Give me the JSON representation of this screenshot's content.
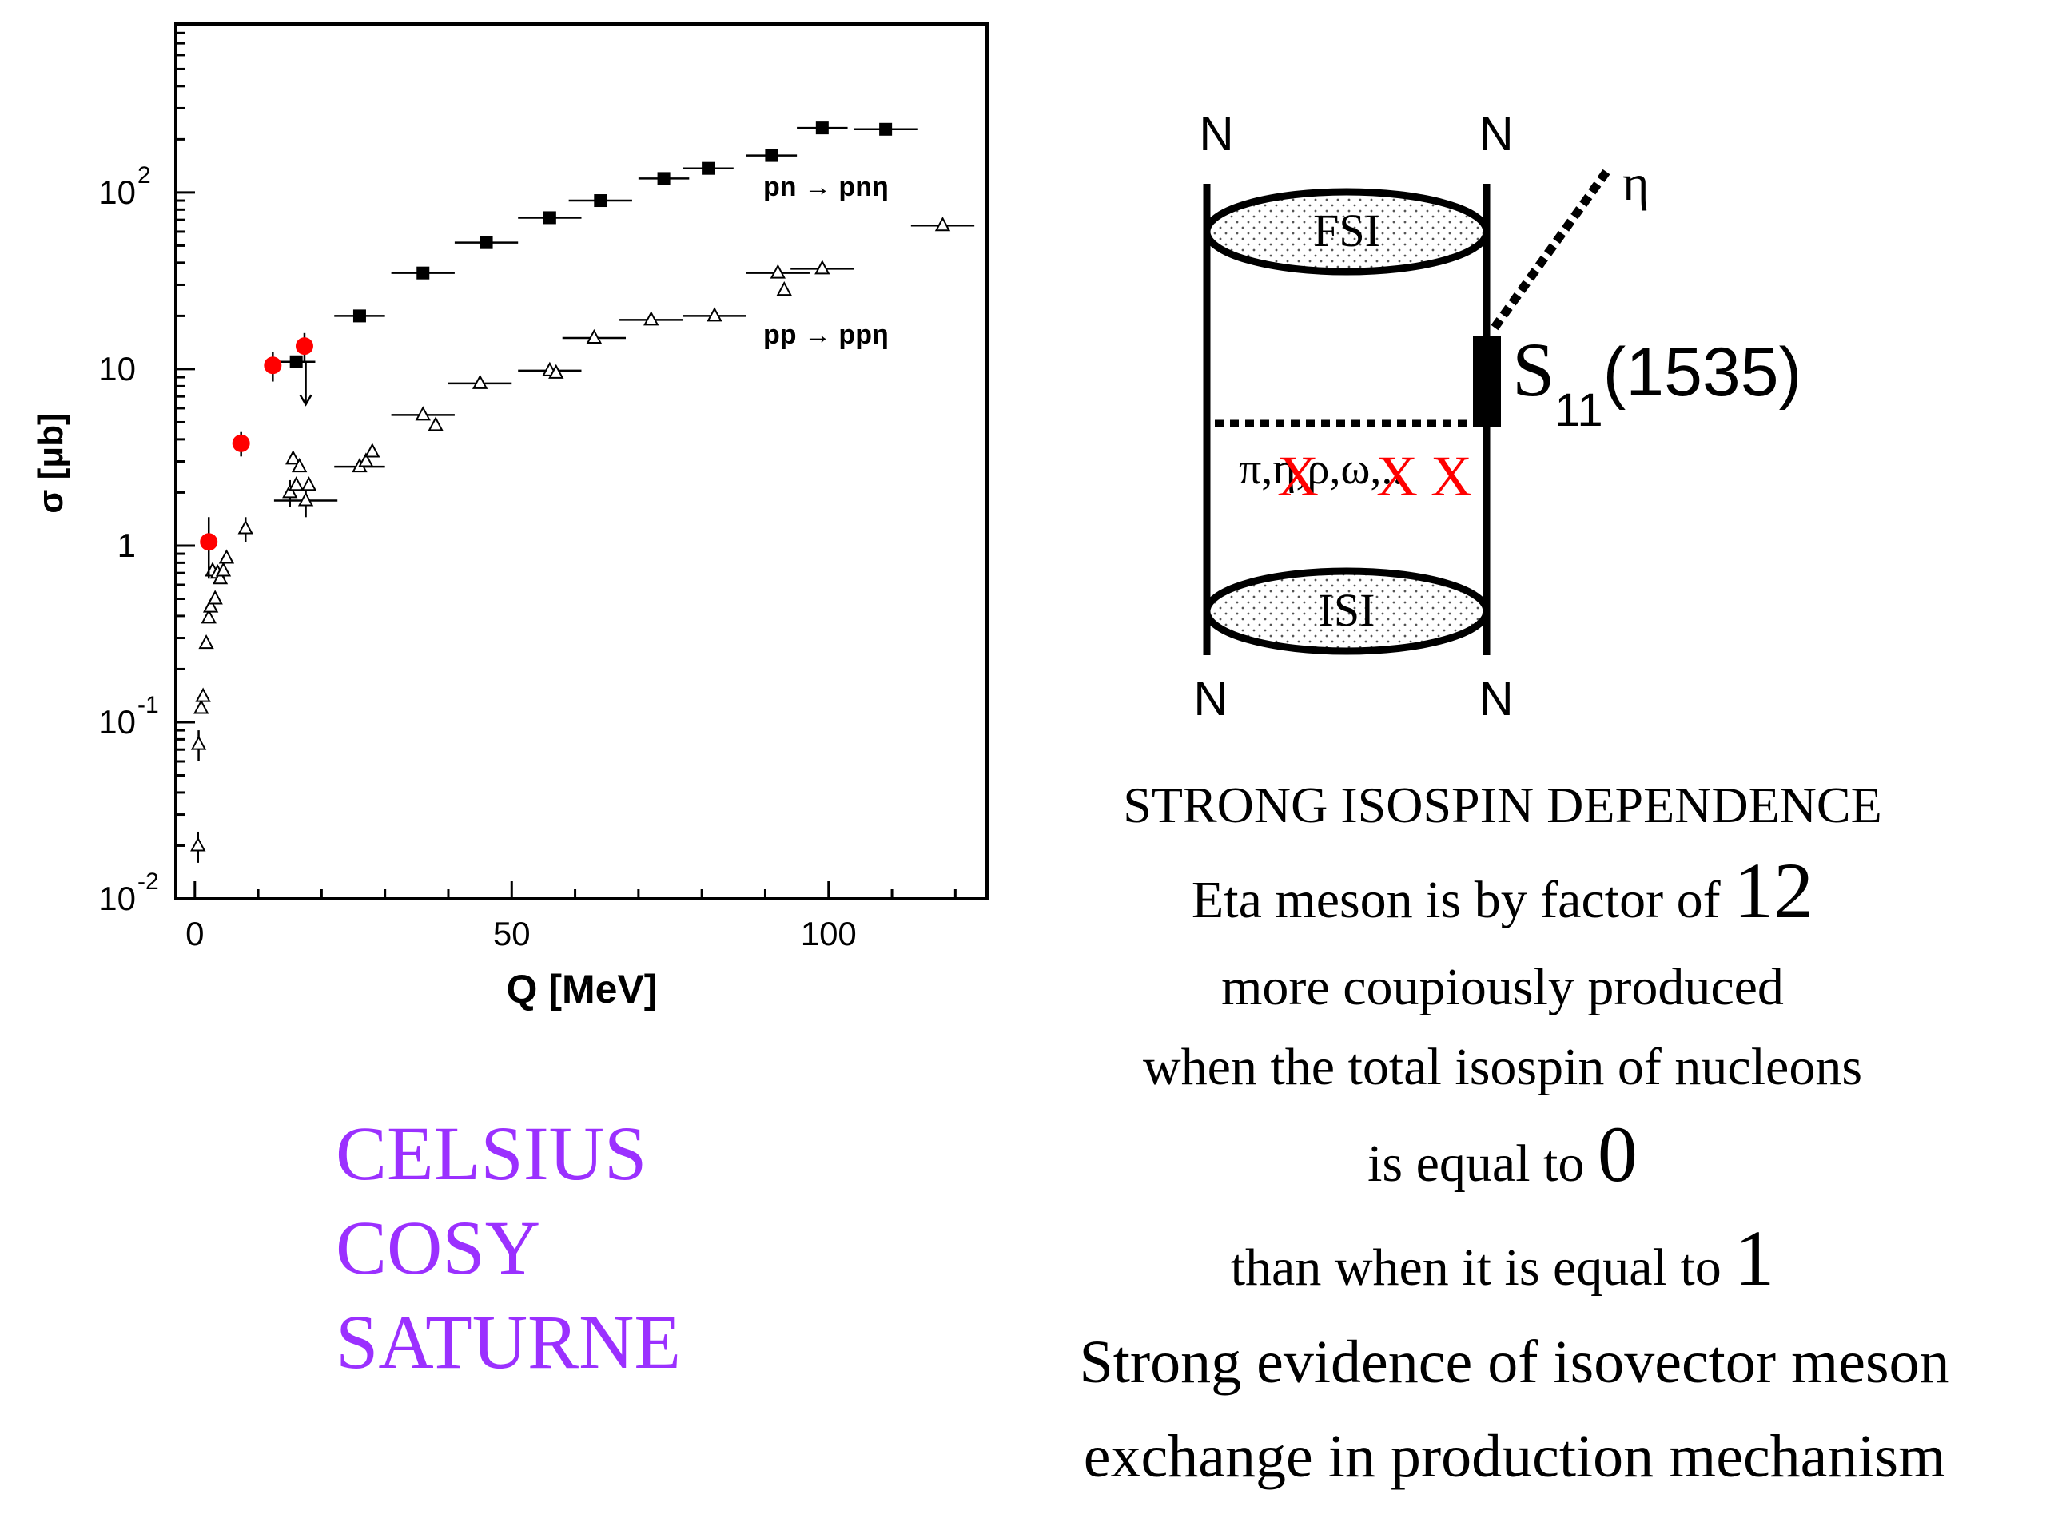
{
  "chart_data": {
    "type": "scatter",
    "xlabel": "Q [MeV]",
    "ylabel": "σ [μb]",
    "xlim": [
      -3,
      125
    ],
    "ylim": [
      0.01,
      900
    ],
    "y_scale": "log",
    "x_ticks": [
      0,
      50,
      100
    ],
    "y_ticks": [
      {
        "value": 0.01,
        "base": "10",
        "exp": "-2"
      },
      {
        "value": 0.1,
        "base": "10",
        "exp": "-1"
      },
      {
        "value": 1,
        "base": "1",
        "exp": ""
      },
      {
        "value": 10,
        "base": "10",
        "exp": ""
      },
      {
        "value": 100,
        "base": "10",
        "exp": "2"
      }
    ],
    "series": [
      {
        "name": "pn → pnη",
        "marker": "filled-square",
        "color": "#000000",
        "points": [
          {
            "x": 16,
            "y": 11,
            "xerr": 3
          },
          {
            "x": 26,
            "y": 20,
            "xerr": 4
          },
          {
            "x": 36,
            "y": 35,
            "xerr": 5
          },
          {
            "x": 46,
            "y": 52,
            "xerr": 5
          },
          {
            "x": 56,
            "y": 72,
            "xerr": 5
          },
          {
            "x": 64,
            "y": 90,
            "xerr": 5
          },
          {
            "x": 74,
            "y": 120,
            "xerr": 4
          },
          {
            "x": 81,
            "y": 137,
            "xerr": 4
          },
          {
            "x": 91,
            "y": 162,
            "xerr": 4
          },
          {
            "x": 99,
            "y": 232,
            "xerr": 4
          },
          {
            "x": 109,
            "y": 228,
            "xerr": 5
          }
        ]
      },
      {
        "name": "pp → ppη",
        "marker": "open-triangle",
        "color": "#000000",
        "points": [
          {
            "x": 0.5,
            "y": 0.02,
            "yerr": 0.004
          },
          {
            "x": 0.6,
            "y": 0.075,
            "yerr": 0.015
          },
          {
            "x": 1.0,
            "y": 0.12
          },
          {
            "x": 1.3,
            "y": 0.14
          },
          {
            "x": 1.8,
            "y": 0.28
          },
          {
            "x": 2.2,
            "y": 0.39
          },
          {
            "x": 2.5,
            "y": 0.45
          },
          {
            "x": 2.8,
            "y": 0.72
          },
          {
            "x": 3.2,
            "y": 0.5
          },
          {
            "x": 3.6,
            "y": 0.7
          },
          {
            "x": 4.0,
            "y": 0.65
          },
          {
            "x": 4.5,
            "y": 0.72
          },
          {
            "x": 5.0,
            "y": 0.85
          },
          {
            "x": 8.0,
            "y": 1.25,
            "yerr": 0.2
          },
          {
            "x": 15,
            "y": 2.0,
            "yerr": 0.35
          },
          {
            "x": 15.5,
            "y": 3.1
          },
          {
            "x": 16,
            "y": 2.2
          },
          {
            "x": 16.5,
            "y": 2.8
          },
          {
            "x": 17.5,
            "y": 1.8,
            "xerr": 5,
            "yerr": 0.35
          },
          {
            "x": 18,
            "y": 2.2
          },
          {
            "x": 26,
            "y": 2.8,
            "xerr": 4
          },
          {
            "x": 27,
            "y": 3.0
          },
          {
            "x": 28,
            "y": 3.4
          },
          {
            "x": 36,
            "y": 5.5,
            "xerr": 5
          },
          {
            "x": 38,
            "y": 4.8
          },
          {
            "x": 45,
            "y": 8.3,
            "xerr": 5
          },
          {
            "x": 56,
            "y": 9.8,
            "xerr": 5
          },
          {
            "x": 57,
            "y": 9.5
          },
          {
            "x": 63,
            "y": 15,
            "xerr": 5
          },
          {
            "x": 72,
            "y": 19,
            "xerr": 5
          },
          {
            "x": 82,
            "y": 20,
            "xerr": 5
          },
          {
            "x": 92,
            "y": 35,
            "xerr": 5
          },
          {
            "x": 93,
            "y": 28
          },
          {
            "x": 99,
            "y": 37,
            "xerr": 5
          },
          {
            "x": 118,
            "y": 65,
            "xerr": 5
          }
        ]
      },
      {
        "name": "",
        "marker": "red-circle",
        "color": "#ff0000",
        "points": [
          {
            "x": 2.2,
            "y": 1.05,
            "yerr": 0.4
          },
          {
            "x": 7.3,
            "y": 3.8,
            "yerr": 0.6
          },
          {
            "x": 12.3,
            "y": 10.5,
            "yerr": 2.0
          },
          {
            "x": 17.3,
            "y": 13.5,
            "yerr": 2.5
          }
        ]
      }
    ],
    "annotations": [
      {
        "text": "pn → pnη",
        "x": 90,
        "y": 90
      },
      {
        "text": "pp → ppη",
        "x": 90,
        "y": 10
      }
    ]
  },
  "diagram": {
    "top_left_label": "N",
    "top_right_label": "N",
    "bottom_left_label": "N",
    "bottom_right_label": "N",
    "fsi_label": "FSI",
    "isi_label": "ISI",
    "eta_label": "η",
    "resonance_label": "S",
    "resonance_subscript": "11",
    "resonance_mass": "(1535)",
    "exchange_label": "π,η,ρ,ω,..",
    "crossed_marks": [
      "X",
      "X",
      "X"
    ]
  },
  "labs": [
    "CELSIUS",
    "COSY",
    "SATURNE"
  ],
  "conclusions": {
    "line1": "STRONG ISOSPIN DEPENDENCE",
    "line2_text": "Eta meson is by factor  of ",
    "line2_num": "12",
    "line3": "more coupiously produced",
    "line4": "when the total isospin of nucleons",
    "line5_text": "is equal to ",
    "line5_num": "0",
    "line6_text": "than when it is equal to ",
    "line6_num": "1",
    "line7": "Strong evidence of   isovector meson",
    "line8": "exchange in  production mechanism"
  }
}
